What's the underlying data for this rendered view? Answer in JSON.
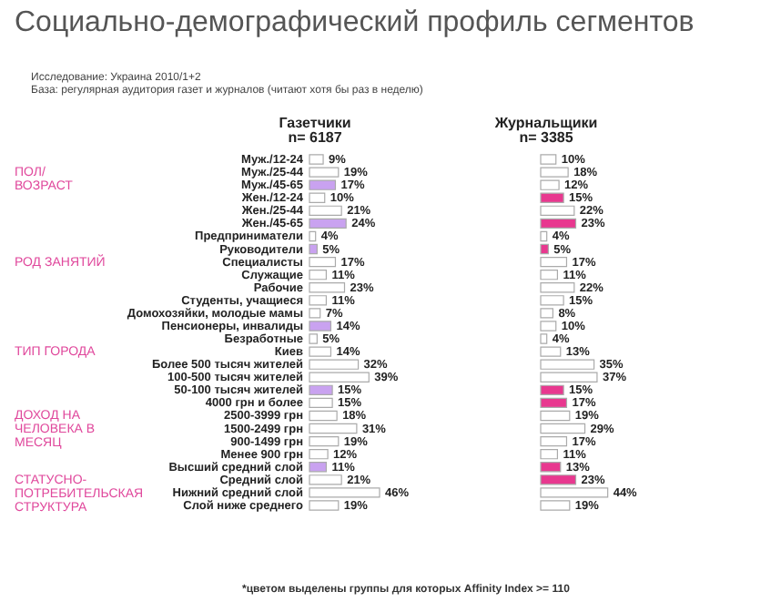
{
  "chart_data": [
    {
      "type": "other",
      "title": "Социально-демографический профиль сегментов",
      "subtitle": "Исследование: Украина 2010/1+2",
      "annotations": [
        "База: регулярная аудитория газет и журналов (читают хотя бы раз в неделю)",
        "*цветом выделены группы для которых Affinity Index >= 110"
      ]
    },
    {
      "type": "bar",
      "orientation": "horizontal",
      "title": "Газетчики",
      "subtitle": "n= 6187",
      "categories": [
        "Муж./12-24",
        "Муж./25-44",
        "Муж./45-65",
        "Жен./12-24",
        "Жен./25-44",
        "Жен./45-65",
        "Предприниматели",
        "Руководители",
        "Специалисты",
        "Служащие",
        "Рабочие",
        "Студенты, учащиеся",
        "Домохозяйки, молодые мамы",
        "Пенсионеры, инвалиды",
        "Безработные",
        "Киев",
        "Более 500 тысяч жителей",
        "100-500 тысяч жителей",
        "50-100 тысяч жителей",
        "4000 грн и более",
        "2500-3999 грн",
        "1500-2499 грн",
        "900-1499 грн",
        "Менее 900 грн",
        "Высший средний слой",
        "Средний слой",
        "Нижний средний слой",
        "Слой ниже среднего"
      ],
      "tick_labels": "y",
      "values": [
        9,
        19,
        17,
        10,
        21,
        24,
        4,
        5,
        17,
        11,
        23,
        11,
        7,
        14,
        5,
        14,
        32,
        39,
        15,
        15,
        18,
        31,
        19,
        12,
        11,
        21,
        46,
        19
      ],
      "value_labels": [
        "9%",
        "19%",
        "17%",
        "10%",
        "21%",
        "24%",
        "4%",
        "5%",
        "17%",
        "11%",
        "23%",
        "11%",
        "7%",
        "14%",
        "5%",
        "14%",
        "32%",
        "39%",
        "15%",
        "15%",
        "18%",
        "31%",
        "19%",
        "12%",
        "11%",
        "21%",
        "46%",
        "19%"
      ],
      "colors": [
        "#ffffff",
        "#ffffff",
        "#c9a2f0",
        "#ffffff",
        "#ffffff",
        "#c9a2f0",
        "#ffffff",
        "#c9a2f0",
        "#ffffff",
        "#ffffff",
        "#ffffff",
        "#ffffff",
        "#ffffff",
        "#c9a2f0",
        "#ffffff",
        "#ffffff",
        "#ffffff",
        "#ffffff",
        "#c9a2f0",
        "#ffffff",
        "#ffffff",
        "#ffffff",
        "#ffffff",
        "#ffffff",
        "#c9a2f0",
        "#ffffff",
        "#ffffff",
        "#ffffff"
      ],
      "annotations": [
        "ПОЛ/\nВОЗРАСТ",
        "РОД ЗАНЯТИЙ",
        "ТИП ГОРОДА",
        "ДОХОД НА\nЧЕЛОВЕКА В\nМЕСЯЦ",
        "СТАТУСНО-\nПОТРЕБИТЕЛЬСКАЯ\nСТРУКТУРА"
      ]
    },
    {
      "type": "bar",
      "orientation": "horizontal",
      "title": "Журнальщики",
      "subtitle": "n= 3385",
      "categories": [
        null,
        null,
        null,
        null,
        null,
        null,
        null,
        null,
        null,
        null,
        null,
        null,
        null,
        null,
        null,
        null,
        null,
        null,
        null,
        null,
        null,
        null,
        null,
        null,
        null,
        null,
        null,
        null
      ],
      "tick_labels": false,
      "values": [
        10,
        18,
        12,
        15,
        22,
        23,
        4,
        5,
        17,
        11,
        22,
        15,
        8,
        10,
        4,
        13,
        35,
        37,
        15,
        17,
        19,
        29,
        17,
        11,
        13,
        23,
        44,
        19
      ],
      "value_labels": [
        "10%",
        "18%",
        "12%",
        "15%",
        "22%",
        "23%",
        "4%",
        "5%",
        "17%",
        "11%",
        "22%",
        "15%",
        "8%",
        "10%",
        "4%",
        "13%",
        "35%",
        "37%",
        "15%",
        "17%",
        "19%",
        "29%",
        "17%",
        "11%",
        "13%",
        "23%",
        "44%",
        "19%"
      ],
      "colors": [
        "#ffffff",
        "#ffffff",
        "#ffffff",
        "#e8388f",
        "#ffffff",
        "#e8388f",
        "#ffffff",
        "#e8388f",
        "#ffffff",
        "#ffffff",
        "#ffffff",
        "#ffffff",
        "#ffffff",
        "#ffffff",
        "#ffffff",
        "#ffffff",
        "#ffffff",
        "#ffffff",
        "#e8388f",
        "#e8388f",
        "#ffffff",
        "#ffffff",
        "#ffffff",
        "#ffffff",
        "#e8388f",
        "#e8388f",
        "#ffffff",
        "#ffffff"
      ]
    }
  ]
}
